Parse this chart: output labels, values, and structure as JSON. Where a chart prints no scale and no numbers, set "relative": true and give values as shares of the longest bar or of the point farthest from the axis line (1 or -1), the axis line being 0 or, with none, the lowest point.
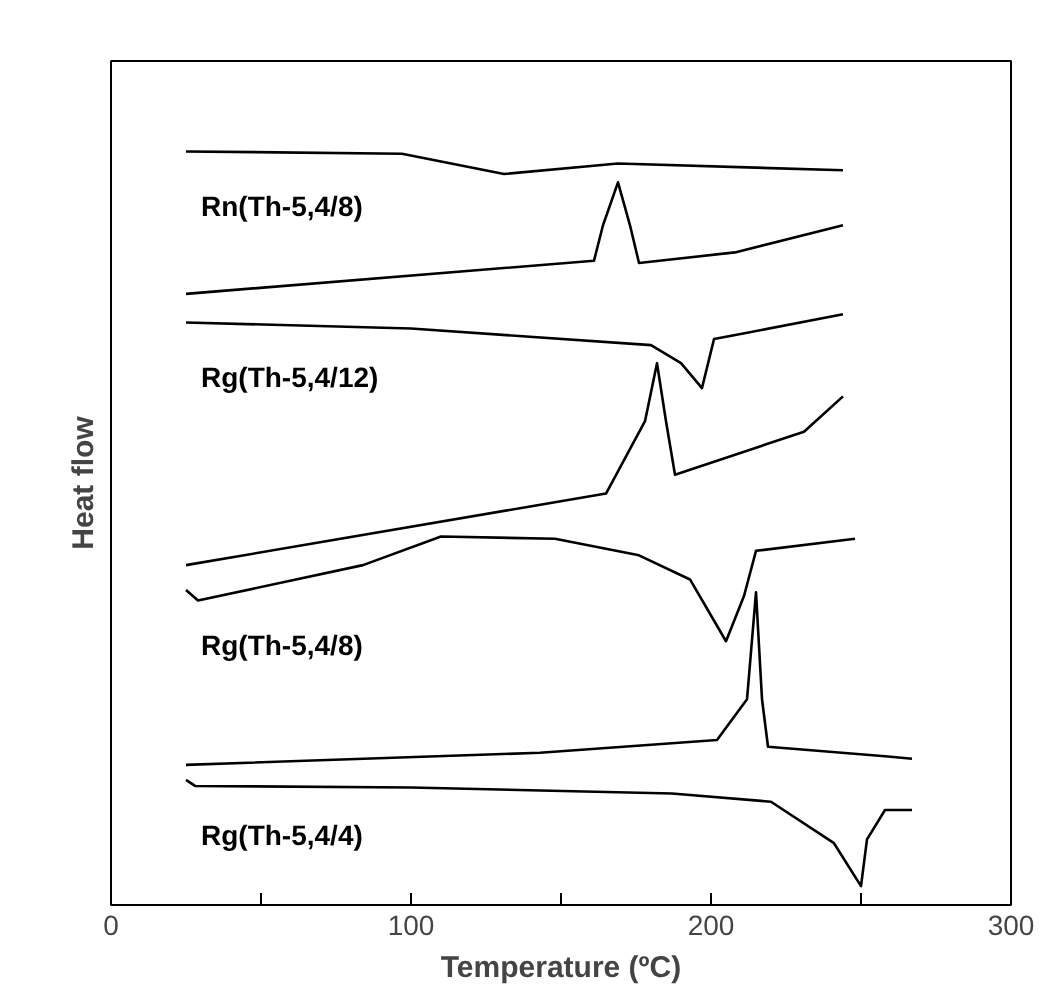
{
  "chart_data": {
    "type": "line",
    "relative": true,
    "xlabel": "Temperature (ºC)",
    "ylabel": "Heat flow",
    "xlim": [
      0,
      300
    ],
    "xticks": [
      0,
      {
        "value": 50,
        "label": null
      },
      100,
      {
        "value": 150,
        "label": null
      },
      200,
      {
        "value": 250,
        "label": null
      },
      300
    ],
    "grid": false,
    "legend": false,
    "marker": "none",
    "line_style": "solid",
    "series": [
      {
        "name": "Rn(Th-5,4/8)",
        "color": "#000000",
        "x": [
          25,
          97,
          131,
          169,
          244
        ],
        "values": [
          1.0,
          0.997,
          0.97,
          0.984,
          0.975
        ]
      },
      {
        "color": "#000000",
        "x": [
          25,
          161,
          164,
          169,
          173,
          176,
          208,
          244
        ],
        "values": [
          0.811,
          0.855,
          0.902,
          0.959,
          0.902,
          0.852,
          0.866,
          0.902
        ]
      },
      {
        "name": "Rg(Th-5,4/12)",
        "color": "#000000",
        "x": [
          25,
          100,
          180,
          190,
          197,
          201,
          209,
          244
        ],
        "values": [
          0.773,
          0.765,
          0.743,
          0.719,
          0.686,
          0.751,
          0.757,
          0.784
        ]
      },
      {
        "color": "#000000",
        "x": [
          25,
          165,
          178,
          182,
          185,
          188,
          231,
          244
        ],
        "values": [
          0.451,
          0.546,
          0.642,
          0.719,
          0.642,
          0.571,
          0.628,
          0.675
        ]
      },
      {
        "name": "Rg(Th-5,4/8)",
        "color": "#000000",
        "x": [
          25,
          29,
          84,
          110,
          148,
          176,
          193,
          205,
          211,
          215,
          248
        ],
        "values": [
          0.418,
          0.404,
          0.451,
          0.489,
          0.486,
          0.464,
          0.432,
          0.35,
          0.41,
          0.47,
          0.486
        ]
      },
      {
        "color": "#000000",
        "x": [
          25,
          143,
          202,
          212,
          215,
          217,
          219,
          259,
          267
        ],
        "values": [
          0.186,
          0.202,
          0.219,
          0.273,
          0.415,
          0.273,
          0.21,
          0.197,
          0.194
        ]
      },
      {
        "name": "Rg(Th-5,4/4)",
        "color": "#000000",
        "x": [
          25,
          28,
          100,
          187,
          220,
          241,
          250,
          252,
          258,
          267
        ],
        "values": [
          0.166,
          0.158,
          0.156,
          0.148,
          0.137,
          0.082,
          0.025,
          0.087,
          0.126,
          0.126
        ]
      }
    ]
  }
}
